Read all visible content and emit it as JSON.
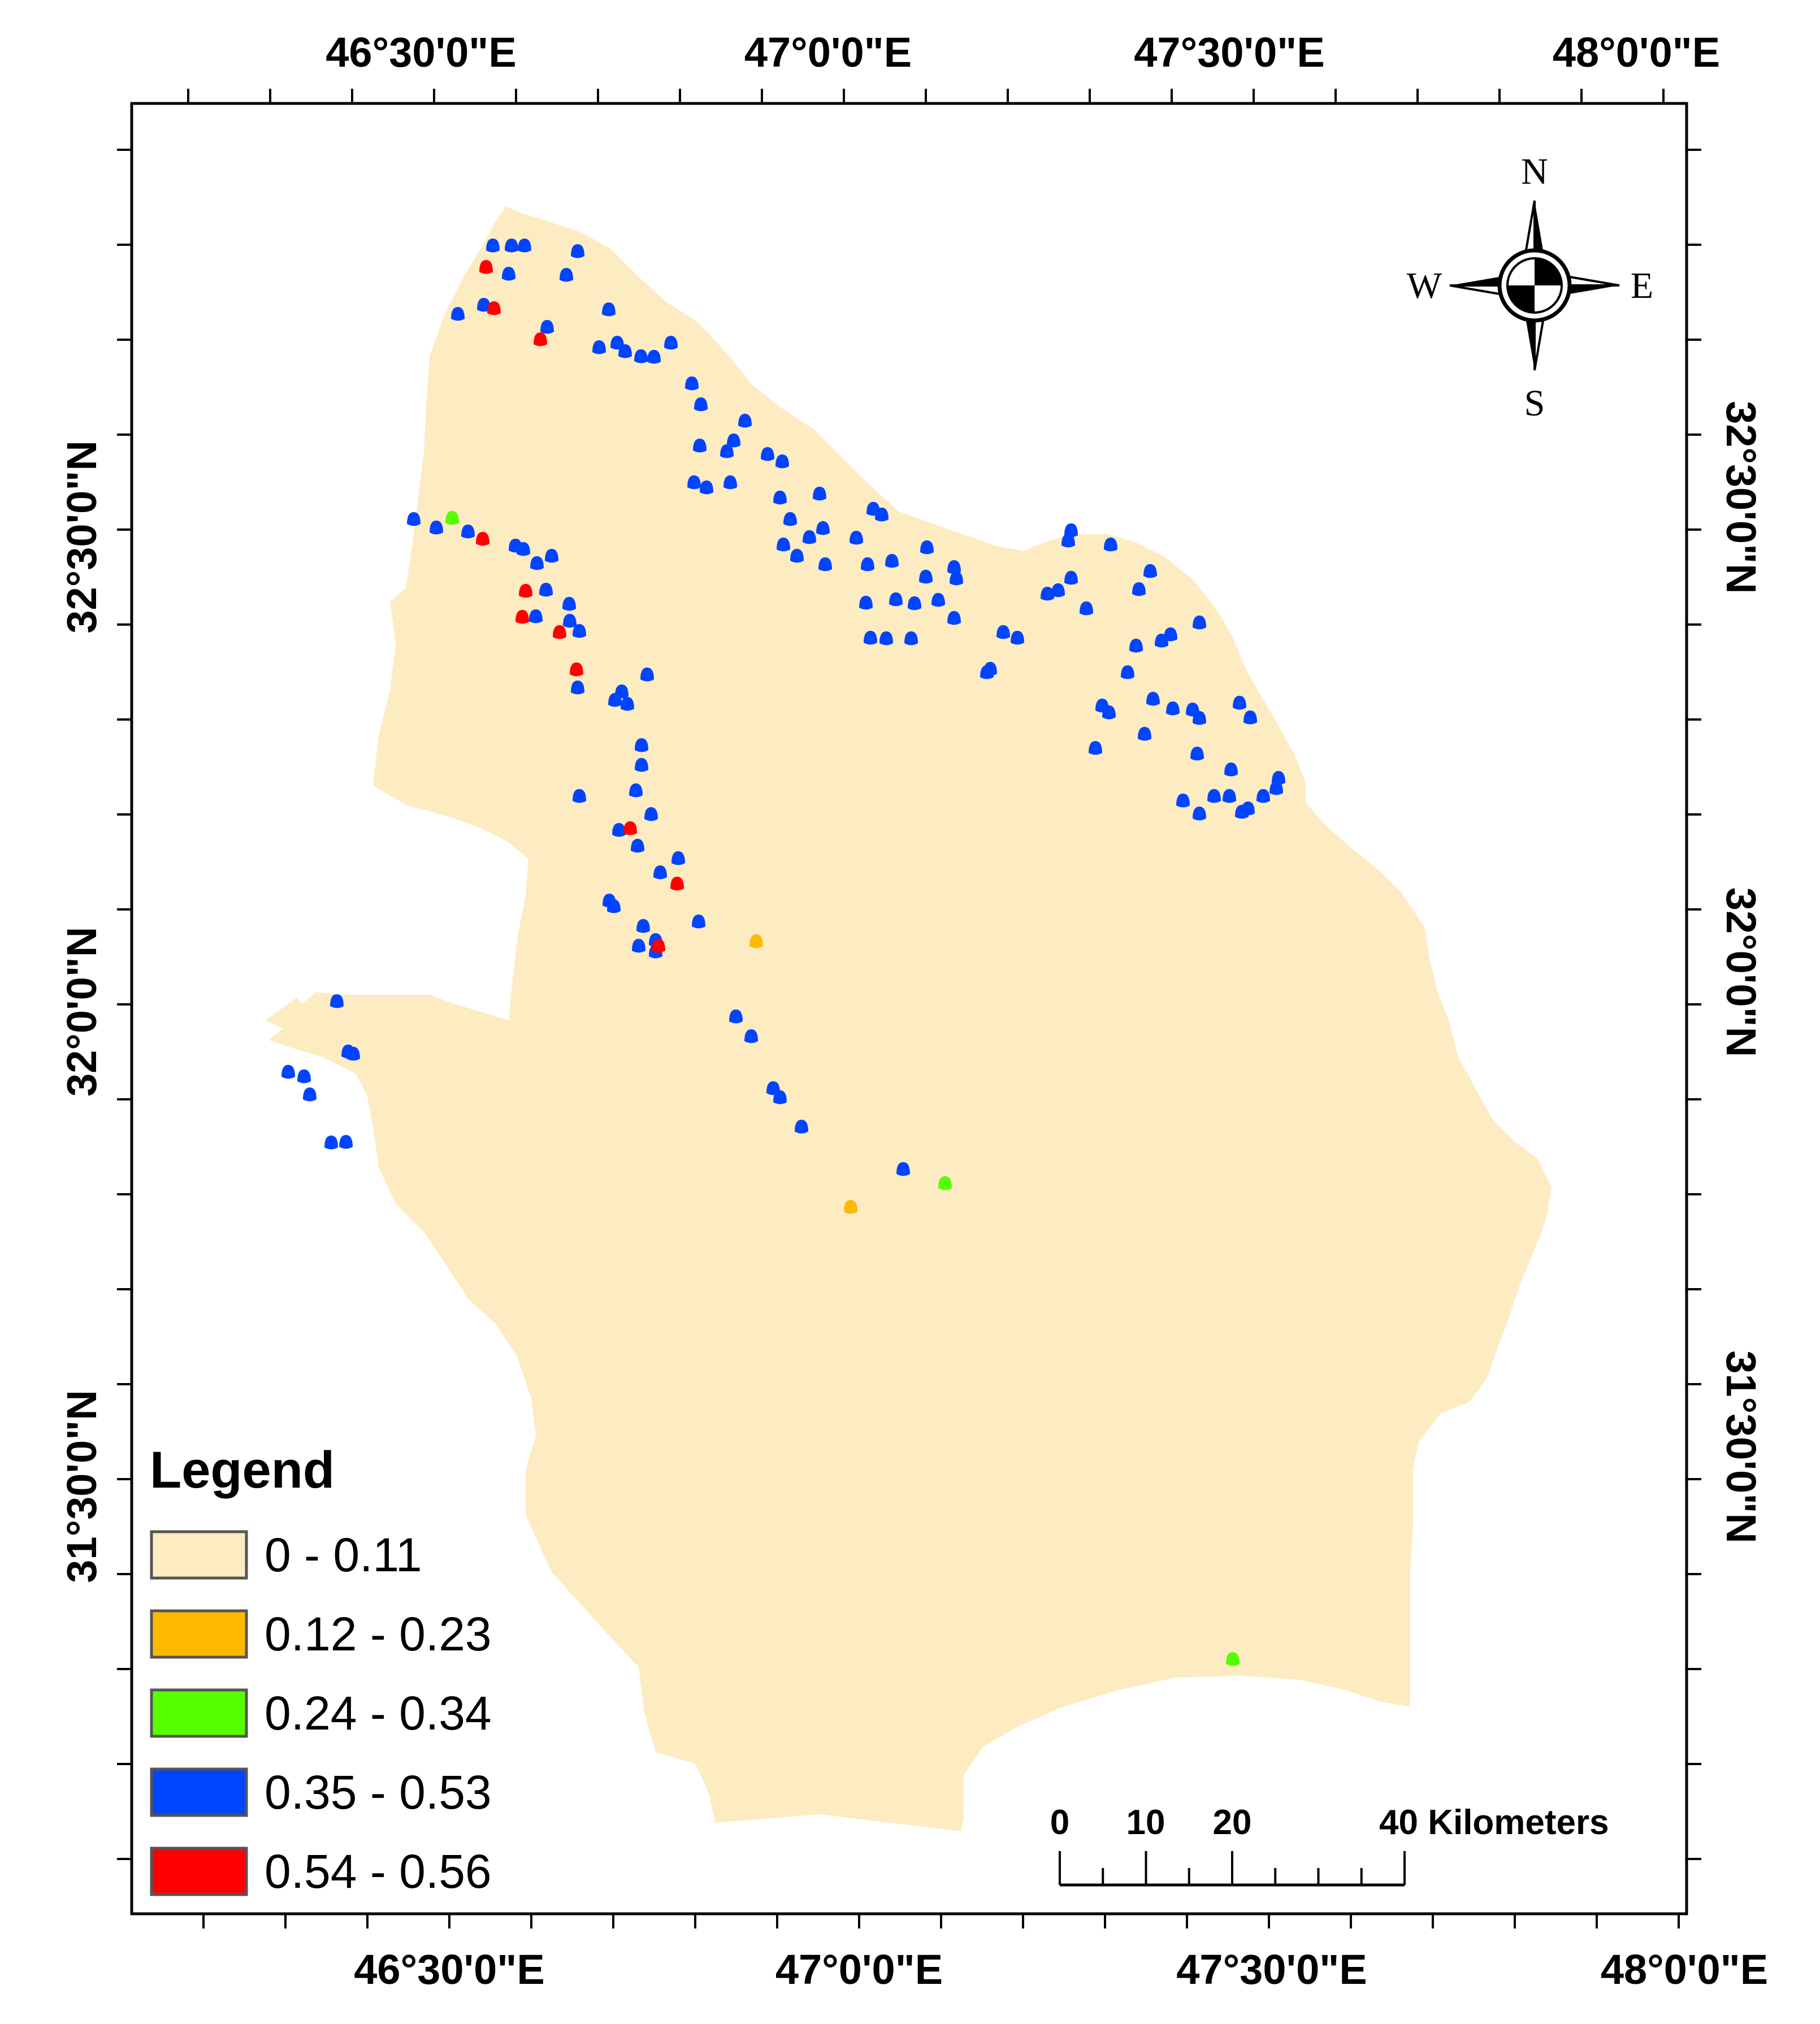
{
  "map": {
    "background_color": "#ffffff",
    "region_color": "#fdebc2",
    "frame_color": "#000000",
    "top_longitude_labels": [
      "46°30'0\"E",
      "47°0'0\"E",
      "47°30'0\"E",
      "48°0'0\"E"
    ],
    "bottom_longitude_labels": [
      "46°30'0\"E",
      "47°0'0\"E",
      "47°30'0\"E",
      "48°0'0\"E"
    ],
    "left_latitude_labels": [
      "32°30'0\"N",
      "32°0'0\"N",
      "31°30'0\"N"
    ],
    "right_latitude_labels": [
      "32°30'0\"N",
      "32°0'0\"N",
      "31°30'0\"N"
    ]
  },
  "compass": {
    "icon": "north-arrow-compass-icon",
    "north": "N",
    "south": "S",
    "east": "E",
    "west": "W"
  },
  "legend": {
    "title": "Legend",
    "items": [
      {
        "label": "0 - 0.11",
        "color": "#fdebc2"
      },
      {
        "label": "0.12 - 0.23",
        "color": "#fdb900"
      },
      {
        "label": "0.24 - 0.34",
        "color": "#55ff00"
      },
      {
        "label": "0.35 - 0.53",
        "color": "#0044ff"
      },
      {
        "label": "0.54 - 0.56",
        "color": "#ff0000"
      }
    ]
  },
  "scale_bar": {
    "labels": [
      "0",
      "10",
      "20",
      "40 Kilometers"
    ]
  },
  "points": {
    "class_0_12_0_23": "#fdb900",
    "class_0_24_0_34": "#55ff00",
    "class_0_35_0_53": "#0044ff",
    "class_0_54_0_56": "#ff0000"
  }
}
